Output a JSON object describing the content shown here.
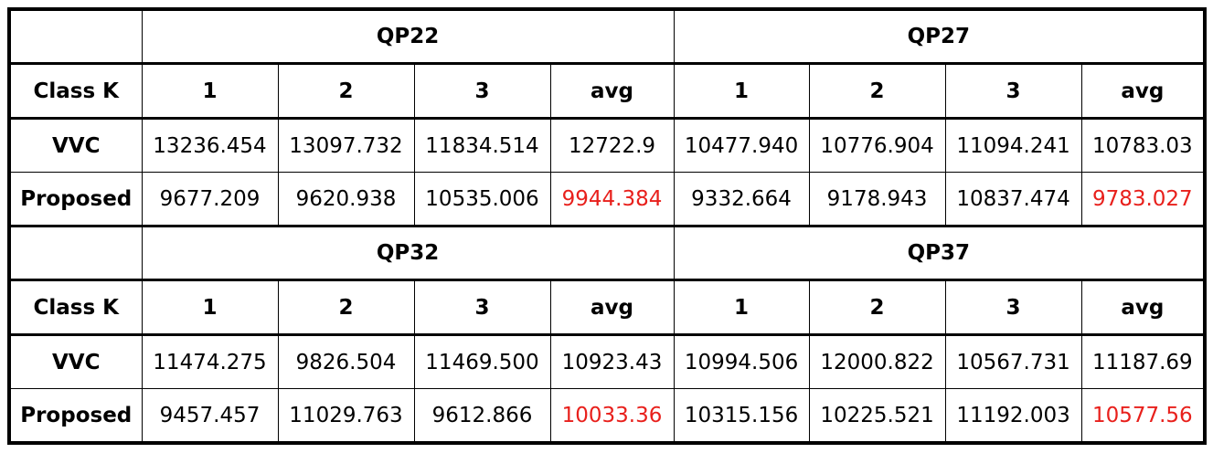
{
  "blocks": [
    {
      "groups": [
        "QP22",
        "QP27"
      ],
      "class_label": "Class K",
      "columns": [
        "1",
        "2",
        "3",
        "avg",
        "1",
        "2",
        "3",
        "avg"
      ],
      "rows": [
        {
          "label": "VVC",
          "values": [
            "13236.454",
            "13097.732",
            "11834.514",
            "12722.9",
            "10477.940",
            "10776.904",
            "11094.241",
            "10783.03"
          ]
        },
        {
          "label": "Proposed",
          "values": [
            "9677.209",
            "9620.938",
            "10535.006",
            "9944.384",
            "9332.664",
            "9178.943",
            "10837.474",
            "9783.027"
          ]
        }
      ]
    },
    {
      "groups": [
        "QP32",
        "QP37"
      ],
      "class_label": "Class K",
      "columns": [
        "1",
        "2",
        "3",
        "avg",
        "1",
        "2",
        "3",
        "avg"
      ],
      "rows": [
        {
          "label": "VVC",
          "values": [
            "11474.275",
            "9826.504",
            "11469.500",
            "10923.43",
            "10994.506",
            "12000.822",
            "10567.731",
            "11187.69"
          ]
        },
        {
          "label": "Proposed",
          "values": [
            "9457.457",
            "11029.763",
            "9612.866",
            "10033.36",
            "10315.156",
            "10225.521",
            "11192.003",
            "10577.56"
          ]
        }
      ]
    }
  ],
  "highlight_color": "#e8201c"
}
